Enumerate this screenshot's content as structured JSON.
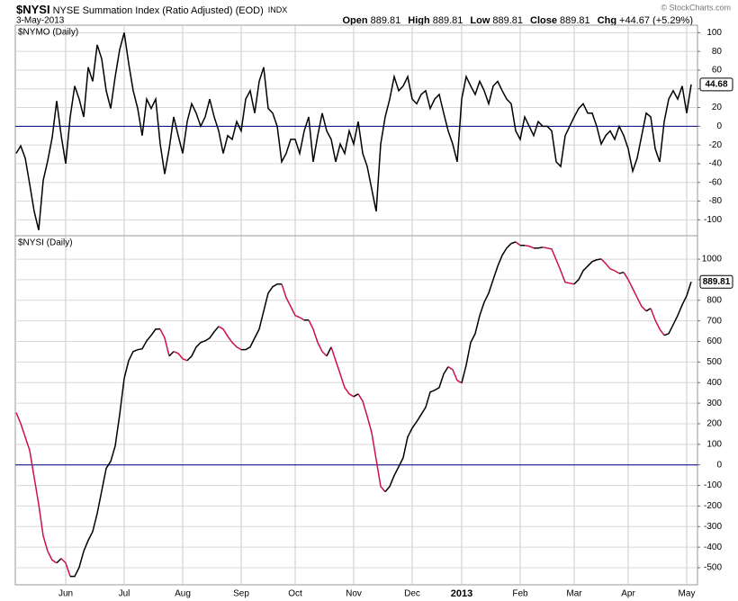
{
  "header": {
    "symbol": "$NYSI",
    "name": "NYSE Summation Index (Ratio Adjusted) (EOD)",
    "exchange": "INDX",
    "date": "3-May-2013",
    "quote": [
      {
        "label": "Open",
        "value": 889.81
      },
      {
        "label": "High",
        "value": 889.81
      },
      {
        "label": "Low",
        "value": 889.81
      },
      {
        "label": "Close",
        "value": 889.81
      },
      {
        "label": "Chg",
        "value": "+44.67 (+5.29%)"
      }
    ],
    "source": "© StockCharts.com"
  },
  "chart_data": [
    {
      "type": "line",
      "title": "$NYMO (Daily)",
      "color": "#000000",
      "grid": true,
      "zero_line_color": "#000080",
      "last_value_box": true,
      "ylim": [
        -117,
        108
      ],
      "yticks": [
        -100,
        -80,
        -60,
        -40,
        -20,
        0,
        20,
        40,
        60,
        80,
        100
      ],
      "values": [
        -29,
        -21,
        -34,
        -62,
        -91,
        -111,
        -58,
        -37,
        -12,
        27,
        -10,
        -40,
        10,
        43,
        29,
        10,
        63,
        48,
        87,
        72,
        38,
        19,
        53,
        82,
        100,
        67,
        38,
        19,
        -10,
        29,
        19,
        29,
        -19,
        -51,
        -24,
        10,
        -10,
        -29,
        5,
        24,
        14,
        0,
        10,
        29,
        10,
        -5,
        -29,
        -10,
        -14,
        5,
        -5,
        29,
        38,
        14,
        48,
        63,
        19,
        14,
        0,
        -38,
        -29,
        -14,
        -14,
        -29,
        -5,
        10,
        -38,
        -10,
        14,
        -5,
        -14,
        -38,
        -19,
        -29,
        -5,
        -19,
        5,
        -29,
        -43,
        -67,
        -91,
        -19,
        10,
        29,
        53,
        38,
        43,
        53,
        29,
        24,
        34,
        38,
        19,
        29,
        34,
        14,
        -5,
        -19,
        -38,
        29,
        53,
        43,
        34,
        48,
        38,
        24,
        43,
        48,
        38,
        29,
        24,
        -5,
        -14,
        10,
        0,
        -10,
        5,
        0,
        0,
        -5,
        -38,
        -43,
        -10,
        0,
        10,
        19,
        24,
        14,
        14,
        0,
        -19,
        -10,
        -5,
        -14,
        0,
        -10,
        -24,
        -48,
        -34,
        -10,
        14,
        10,
        -24,
        -38,
        5,
        29,
        38,
        29,
        43,
        14,
        44.68
      ]
    },
    {
      "type": "line",
      "title": "$NYSI (Daily)",
      "up_color": "#000000",
      "down_color": "#cc1144",
      "grid": true,
      "zero_line_color": "#000080",
      "last_value_box": true,
      "ylim": [
        -583,
        1114
      ],
      "yticks": [
        -500,
        -400,
        -300,
        -200,
        -100,
        0,
        100,
        200,
        300,
        400,
        500,
        600,
        700,
        800,
        900,
        1000
      ],
      "categories": [
        null,
        null,
        null,
        null,
        null,
        null,
        null,
        null,
        null,
        null,
        null,
        "Jun",
        null,
        null,
        null,
        null,
        null,
        null,
        null,
        null,
        null,
        null,
        null,
        null,
        "Jul",
        null,
        null,
        null,
        null,
        null,
        null,
        null,
        null,
        null,
        null,
        null,
        null,
        "Aug",
        null,
        null,
        null,
        null,
        null,
        null,
        null,
        null,
        null,
        null,
        null,
        null,
        "Sep",
        null,
        null,
        null,
        null,
        null,
        null,
        null,
        null,
        null,
        null,
        null,
        "Oct",
        null,
        null,
        null,
        null,
        null,
        null,
        null,
        null,
        null,
        null,
        null,
        null,
        "Nov",
        null,
        null,
        null,
        null,
        null,
        null,
        null,
        null,
        null,
        null,
        null,
        null,
        "Dec",
        null,
        null,
        null,
        null,
        null,
        null,
        null,
        null,
        null,
        null,
        "2013",
        null,
        null,
        null,
        null,
        null,
        null,
        null,
        null,
        null,
        null,
        null,
        null,
        "Feb",
        null,
        null,
        null,
        null,
        null,
        null,
        null,
        null,
        null,
        null,
        null,
        "Mar",
        null,
        null,
        null,
        null,
        null,
        null,
        null,
        null,
        null,
        null,
        null,
        "Apr",
        null,
        null,
        null,
        null,
        null,
        null,
        null,
        null,
        null,
        null,
        null,
        null,
        "May",
        null
      ],
      "values": [
        254,
        201,
        136,
        70,
        -61,
        -192,
        -345,
        -420,
        -463,
        -477,
        -455,
        -477,
        -542,
        -542,
        -498,
        -420,
        -367,
        -324,
        -236,
        -127,
        -17,
        17,
        92,
        245,
        420,
        507,
        551,
        560,
        564,
        603,
        630,
        660,
        660,
        617,
        529,
        551,
        542,
        516,
        507,
        529,
        573,
        595,
        603,
        617,
        647,
        673,
        660,
        625,
        595,
        573,
        560,
        560,
        573,
        617,
        660,
        748,
        835,
        866,
        879,
        879,
        813,
        770,
        726,
        717,
        704,
        704,
        660,
        595,
        551,
        529,
        573,
        507,
        442,
        376,
        345,
        332,
        345,
        310,
        236,
        157,
        26,
        -105,
        -131,
        -105,
        -52,
        -9,
        35,
        136,
        179,
        210,
        245,
        280,
        354,
        363,
        376,
        442,
        477,
        463,
        411,
        398,
        485,
        595,
        638,
        726,
        791,
        835,
        901,
        966,
        1019,
        1054,
        1076,
        1084,
        1067,
        1067,
        1063,
        1054,
        1054,
        1058,
        1054,
        1049,
        997,
        944,
        888,
        883,
        879,
        901,
        944,
        966,
        988,
        997,
        1001,
        979,
        953,
        944,
        931,
        936,
        901,
        857,
        813,
        770,
        748,
        761,
        704,
        660,
        630,
        638,
        682,
        726,
        778,
        822,
        889.81
      ]
    }
  ]
}
